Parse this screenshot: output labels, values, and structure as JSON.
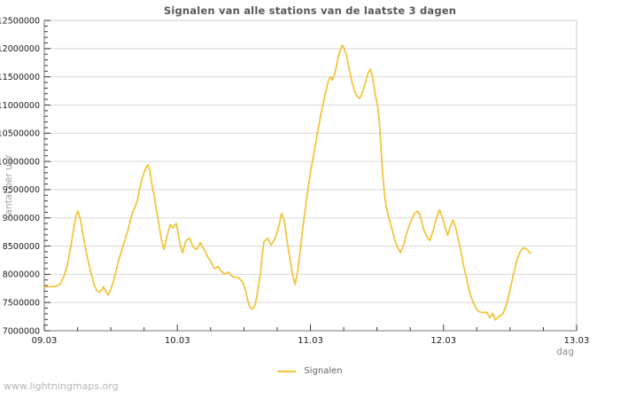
{
  "page": {
    "watermark": "www.lightningmaps.org"
  },
  "chart_data": {
    "type": "line",
    "title": "Signalen van alle stations van de laatste 3 dagen",
    "xlabel": "dag",
    "ylabel": "Aantal per uur",
    "legend_position": "bottom-center",
    "grid": "horizontal-only",
    "x_min": 0,
    "x_max": 4,
    "x_axis_note": "x in dagen vanaf 09.03 00:00",
    "x_ticks": [
      {
        "t": 0,
        "label": "09.03"
      },
      {
        "t": 1,
        "label": "10.03"
      },
      {
        "t": 2,
        "label": "11.03"
      },
      {
        "t": 3,
        "label": "12.03"
      },
      {
        "t": 4,
        "label": "13.03"
      }
    ],
    "x_minor_tick_step": 0.25,
    "y_min": 7000000,
    "y_max": 12500000,
    "y_tick_step": 500000,
    "y_minor_tick_step": 100000,
    "series": [
      {
        "name": "Signalen",
        "color": "#f3c53d",
        "points": [
          [
            0.0,
            7780000
          ],
          [
            0.05,
            7780000
          ],
          [
            0.09,
            7790000
          ],
          [
            0.12,
            7830000
          ],
          [
            0.147,
            7960000
          ],
          [
            0.173,
            8160000
          ],
          [
            0.2,
            8500000
          ],
          [
            0.22,
            8800000
          ],
          [
            0.24,
            9050000
          ],
          [
            0.253,
            9120000
          ],
          [
            0.273,
            8950000
          ],
          [
            0.293,
            8680000
          ],
          [
            0.313,
            8420000
          ],
          [
            0.333,
            8200000
          ],
          [
            0.353,
            8010000
          ],
          [
            0.373,
            7830000
          ],
          [
            0.393,
            7720000
          ],
          [
            0.413,
            7680000
          ],
          [
            0.433,
            7730000
          ],
          [
            0.446,
            7780000
          ],
          [
            0.466,
            7680000
          ],
          [
            0.479,
            7630000
          ],
          [
            0.499,
            7730000
          ],
          [
            0.519,
            7870000
          ],
          [
            0.539,
            8050000
          ],
          [
            0.559,
            8250000
          ],
          [
            0.579,
            8400000
          ],
          [
            0.599,
            8560000
          ],
          [
            0.626,
            8760000
          ],
          [
            0.646,
            8950000
          ],
          [
            0.666,
            9120000
          ],
          [
            0.679,
            9170000
          ],
          [
            0.699,
            9300000
          ],
          [
            0.719,
            9550000
          ],
          [
            0.746,
            9780000
          ],
          [
            0.766,
            9900000
          ],
          [
            0.779,
            9940000
          ],
          [
            0.792,
            9850000
          ],
          [
            0.806,
            9620000
          ],
          [
            0.826,
            9400000
          ],
          [
            0.839,
            9180000
          ],
          [
            0.859,
            8920000
          ],
          [
            0.879,
            8620000
          ],
          [
            0.899,
            8440000
          ],
          [
            0.919,
            8650000
          ],
          [
            0.946,
            8880000
          ],
          [
            0.966,
            8820000
          ],
          [
            0.992,
            8900000
          ],
          [
            1.019,
            8550000
          ],
          [
            1.039,
            8380000
          ],
          [
            1.065,
            8600000
          ],
          [
            1.092,
            8640000
          ],
          [
            1.119,
            8480000
          ],
          [
            1.145,
            8440000
          ],
          [
            1.172,
            8560000
          ],
          [
            1.199,
            8450000
          ],
          [
            1.225,
            8320000
          ],
          [
            1.252,
            8220000
          ],
          [
            1.279,
            8100000
          ],
          [
            1.305,
            8140000
          ],
          [
            1.332,
            8050000
          ],
          [
            1.358,
            8000000
          ],
          [
            1.385,
            8040000
          ],
          [
            1.412,
            7960000
          ],
          [
            1.438,
            7950000
          ],
          [
            1.465,
            7930000
          ],
          [
            1.492,
            7850000
          ],
          [
            1.512,
            7720000
          ],
          [
            1.531,
            7520000
          ],
          [
            1.545,
            7420000
          ],
          [
            1.565,
            7380000
          ],
          [
            1.585,
            7460000
          ],
          [
            1.598,
            7620000
          ],
          [
            1.611,
            7820000
          ],
          [
            1.625,
            8020000
          ],
          [
            1.638,
            8350000
          ],
          [
            1.651,
            8580000
          ],
          [
            1.678,
            8640000
          ],
          [
            1.705,
            8520000
          ],
          [
            1.731,
            8620000
          ],
          [
            1.758,
            8800000
          ],
          [
            1.784,
            9080000
          ],
          [
            1.804,
            8950000
          ],
          [
            1.824,
            8600000
          ],
          [
            1.844,
            8300000
          ],
          [
            1.864,
            8000000
          ],
          [
            1.884,
            7820000
          ],
          [
            1.904,
            8050000
          ],
          [
            1.924,
            8450000
          ],
          [
            1.944,
            8850000
          ],
          [
            1.964,
            9200000
          ],
          [
            1.984,
            9550000
          ],
          [
            2.004,
            9860000
          ],
          [
            2.024,
            10120000
          ],
          [
            2.044,
            10380000
          ],
          [
            2.064,
            10650000
          ],
          [
            2.084,
            10900000
          ],
          [
            2.104,
            11120000
          ],
          [
            2.124,
            11320000
          ],
          [
            2.137,
            11450000
          ],
          [
            2.151,
            11500000
          ],
          [
            2.164,
            11440000
          ],
          [
            2.184,
            11560000
          ],
          [
            2.204,
            11800000
          ],
          [
            2.224,
            11980000
          ],
          [
            2.237,
            12060000
          ],
          [
            2.251,
            12020000
          ],
          [
            2.271,
            11880000
          ],
          [
            2.291,
            11650000
          ],
          [
            2.311,
            11420000
          ],
          [
            2.331,
            11250000
          ],
          [
            2.351,
            11150000
          ],
          [
            2.371,
            11120000
          ],
          [
            2.391,
            11220000
          ],
          [
            2.411,
            11380000
          ],
          [
            2.43,
            11550000
          ],
          [
            2.45,
            11640000
          ],
          [
            2.464,
            11520000
          ],
          [
            2.477,
            11350000
          ],
          [
            2.49,
            11150000
          ],
          [
            2.504,
            11000000
          ],
          [
            2.517,
            10720000
          ],
          [
            2.53,
            10250000
          ],
          [
            2.544,
            9750000
          ],
          [
            2.557,
            9400000
          ],
          [
            2.57,
            9200000
          ],
          [
            2.59,
            9000000
          ],
          [
            2.61,
            8820000
          ],
          [
            2.63,
            8640000
          ],
          [
            2.65,
            8500000
          ],
          [
            2.677,
            8380000
          ],
          [
            2.703,
            8550000
          ],
          [
            2.73,
            8780000
          ],
          [
            2.757,
            8950000
          ],
          [
            2.783,
            9080000
          ],
          [
            2.803,
            9120000
          ],
          [
            2.823,
            9050000
          ],
          [
            2.85,
            8800000
          ],
          [
            2.877,
            8660000
          ],
          [
            2.897,
            8600000
          ],
          [
            2.923,
            8780000
          ],
          [
            2.95,
            9020000
          ],
          [
            2.97,
            9140000
          ],
          [
            2.99,
            9020000
          ],
          [
            3.01,
            8850000
          ],
          [
            3.03,
            8690000
          ],
          [
            3.05,
            8840000
          ],
          [
            3.07,
            8960000
          ],
          [
            3.09,
            8840000
          ],
          [
            3.11,
            8620000
          ],
          [
            3.13,
            8420000
          ],
          [
            3.15,
            8160000
          ],
          [
            3.17,
            7960000
          ],
          [
            3.19,
            7740000
          ],
          [
            3.21,
            7580000
          ],
          [
            3.23,
            7470000
          ],
          [
            3.25,
            7370000
          ],
          [
            3.276,
            7330000
          ],
          [
            3.303,
            7320000
          ],
          [
            3.323,
            7330000
          ],
          [
            3.336,
            7280000
          ],
          [
            3.35,
            7230000
          ],
          [
            3.37,
            7310000
          ],
          [
            3.39,
            7190000
          ],
          [
            3.41,
            7240000
          ],
          [
            3.43,
            7270000
          ],
          [
            3.45,
            7320000
          ],
          [
            3.47,
            7440000
          ],
          [
            3.49,
            7620000
          ],
          [
            3.51,
            7840000
          ],
          [
            3.53,
            8050000
          ],
          [
            3.55,
            8240000
          ],
          [
            3.57,
            8370000
          ],
          [
            3.59,
            8450000
          ],
          [
            3.61,
            8470000
          ],
          [
            3.63,
            8440000
          ],
          [
            3.643,
            8390000
          ],
          [
            3.656,
            8370000
          ]
        ]
      }
    ],
    "colors": {
      "line": "#f3c53d",
      "grid": "#d8d8d8",
      "axis": "#777777",
      "border": "#c9c9c9",
      "tick_label": "#1a1a1a"
    }
  }
}
